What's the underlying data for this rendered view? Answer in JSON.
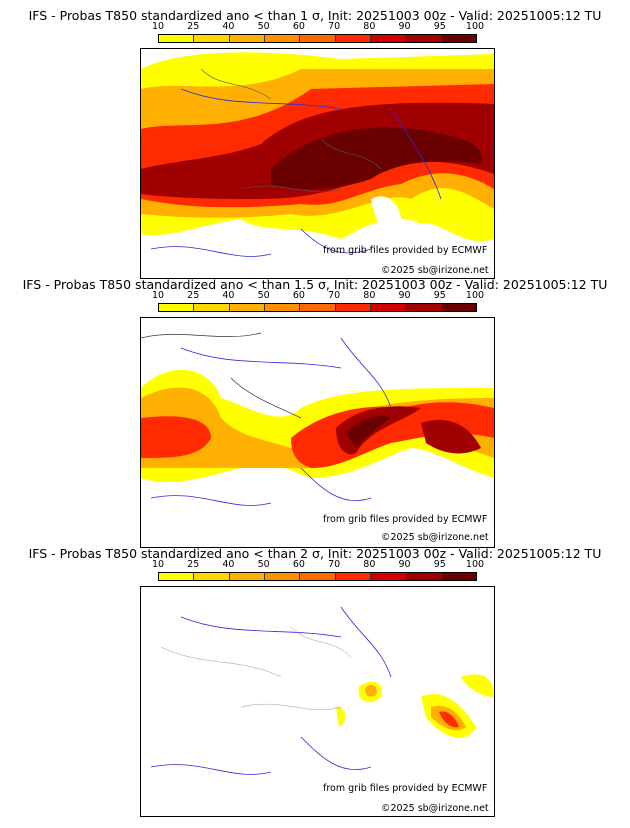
{
  "colorbar": {
    "ticks": [
      "10",
      "25",
      "40",
      "50",
      "60",
      "70",
      "80",
      "90",
      "95",
      "100"
    ],
    "colors": [
      "#ffff00",
      "#ffd700",
      "#ffb000",
      "#ff9000",
      "#ff6a00",
      "#ff2a00",
      "#d40000",
      "#a00000",
      "#6a0000"
    ]
  },
  "panels": [
    {
      "title": "IFS - Probas T850  standardized ano < than 1 σ, Init: 20251003 00z - Valid: 20251005:12 TU",
      "source": "from grib files provided by ECMWF",
      "copyright": "©2025 sb@irizone.net"
    },
    {
      "title": "IFS - Probas T850  standardized ano < than 1.5 σ, Init: 20251003 00z - Valid: 20251005:12 TU",
      "source": "from grib files provided by ECMWF",
      "copyright": "©2025 sb@irizone.net"
    },
    {
      "title": "IFS - Probas T850  standardized ano < than 2 σ, Init: 20251003 00z - Valid: 20251005:12 TU",
      "source": "from grib files provided by ECMWF",
      "copyright": "©2025 sb@irizone.net"
    }
  ]
}
